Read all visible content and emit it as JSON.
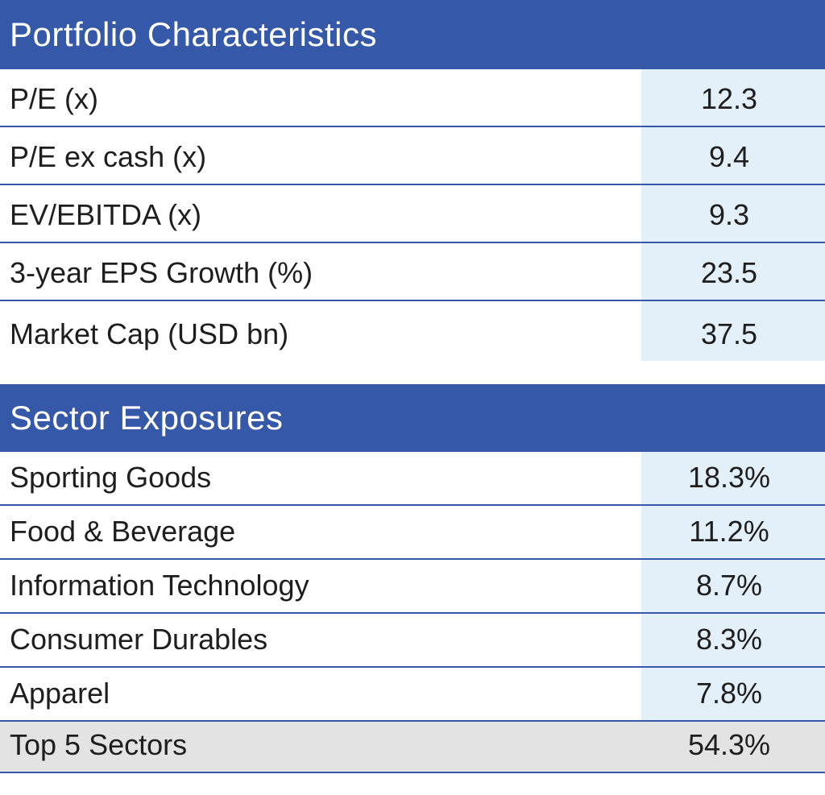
{
  "portfolio": {
    "title": "Portfolio Characteristics",
    "rows": [
      {
        "label": "P/E (x)",
        "value": "12.3"
      },
      {
        "label": "P/E ex cash (x)",
        "value": "9.4"
      },
      {
        "label": "EV/EBITDA (x)",
        "value": "9.3"
      },
      {
        "label": "3-year EPS Growth (%)",
        "value": "23.5"
      },
      {
        "label": "Market Cap (USD bn)",
        "value": "37.5"
      }
    ]
  },
  "sectors": {
    "title": "Sector Exposures",
    "rows": [
      {
        "label": "Sporting Goods",
        "value": "18.3%"
      },
      {
        "label": "Food & Beverage",
        "value": "11.2%"
      },
      {
        "label": "Information Technology",
        "value": "8.7%"
      },
      {
        "label": "Consumer Durables",
        "value": "8.3%"
      },
      {
        "label": "Apparel",
        "value": "7.8%"
      }
    ],
    "total": {
      "label": "Top 5 Sectors",
      "value": "54.3%"
    }
  },
  "colors": {
    "header_bg": "#3559a8",
    "value_bg": "#e3eff9",
    "total_bg": "#e3e3e3"
  }
}
